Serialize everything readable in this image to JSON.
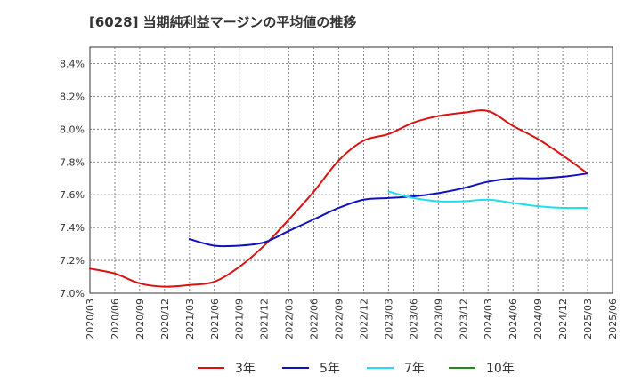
{
  "chart_data": {
    "type": "line",
    "title": "[6028]  当期純利益マージンの平均値の推移",
    "xlabel": "",
    "ylabel": "",
    "ylim": [
      7.0,
      8.5
    ],
    "y_ticks": [
      "7.0%",
      "7.2%",
      "7.4%",
      "7.6%",
      "7.8%",
      "8.0%",
      "8.2%",
      "8.4%"
    ],
    "y_tick_values": [
      7.0,
      7.2,
      7.4,
      7.6,
      7.8,
      8.0,
      8.2,
      8.4
    ],
    "x_ticks": [
      "2020/03",
      "2020/06",
      "2020/09",
      "2020/12",
      "2021/03",
      "2021/06",
      "2021/09",
      "2021/12",
      "2022/03",
      "2022/06",
      "2022/09",
      "2022/12",
      "2023/03",
      "2023/06",
      "2023/09",
      "2023/12",
      "2024/03",
      "2024/06",
      "2024/09",
      "2024/12",
      "2025/03",
      "2025/06"
    ],
    "grid": true,
    "legend_position": "bottom",
    "series": [
      {
        "name": "3年",
        "color": "#dd1111",
        "x": [
          "2020/03",
          "2020/06",
          "2020/09",
          "2020/12",
          "2021/03",
          "2021/06",
          "2021/09",
          "2021/12",
          "2022/03",
          "2022/06",
          "2022/09",
          "2022/12",
          "2023/03",
          "2023/06",
          "2023/09",
          "2023/12",
          "2024/03",
          "2024/06",
          "2024/09",
          "2024/12",
          "2025/03"
        ],
        "values": [
          7.15,
          7.12,
          7.06,
          7.04,
          7.05,
          7.07,
          7.16,
          7.29,
          7.45,
          7.62,
          7.81,
          7.93,
          7.97,
          8.04,
          8.08,
          8.1,
          8.11,
          8.02,
          7.94,
          7.84,
          7.73
        ]
      },
      {
        "name": "5年",
        "color": "#1111bb",
        "x": [
          "2021/03",
          "2021/06",
          "2021/09",
          "2021/12",
          "2022/03",
          "2022/06",
          "2022/09",
          "2022/12",
          "2023/03",
          "2023/06",
          "2023/09",
          "2023/12",
          "2024/03",
          "2024/06",
          "2024/09",
          "2024/12",
          "2025/03"
        ],
        "values": [
          7.33,
          7.29,
          7.29,
          7.31,
          7.38,
          7.45,
          7.52,
          7.57,
          7.58,
          7.59,
          7.61,
          7.64,
          7.68,
          7.7,
          7.7,
          7.71,
          7.73
        ]
      },
      {
        "name": "7年",
        "color": "#22ddee",
        "x": [
          "2023/03",
          "2023/06",
          "2023/09",
          "2023/12",
          "2024/03",
          "2024/06",
          "2024/09",
          "2024/12",
          "2025/03"
        ],
        "values": [
          7.62,
          7.58,
          7.56,
          7.56,
          7.57,
          7.55,
          7.53,
          7.52,
          7.52
        ]
      },
      {
        "name": "10年",
        "color": "#228822",
        "x": [],
        "values": []
      }
    ]
  }
}
